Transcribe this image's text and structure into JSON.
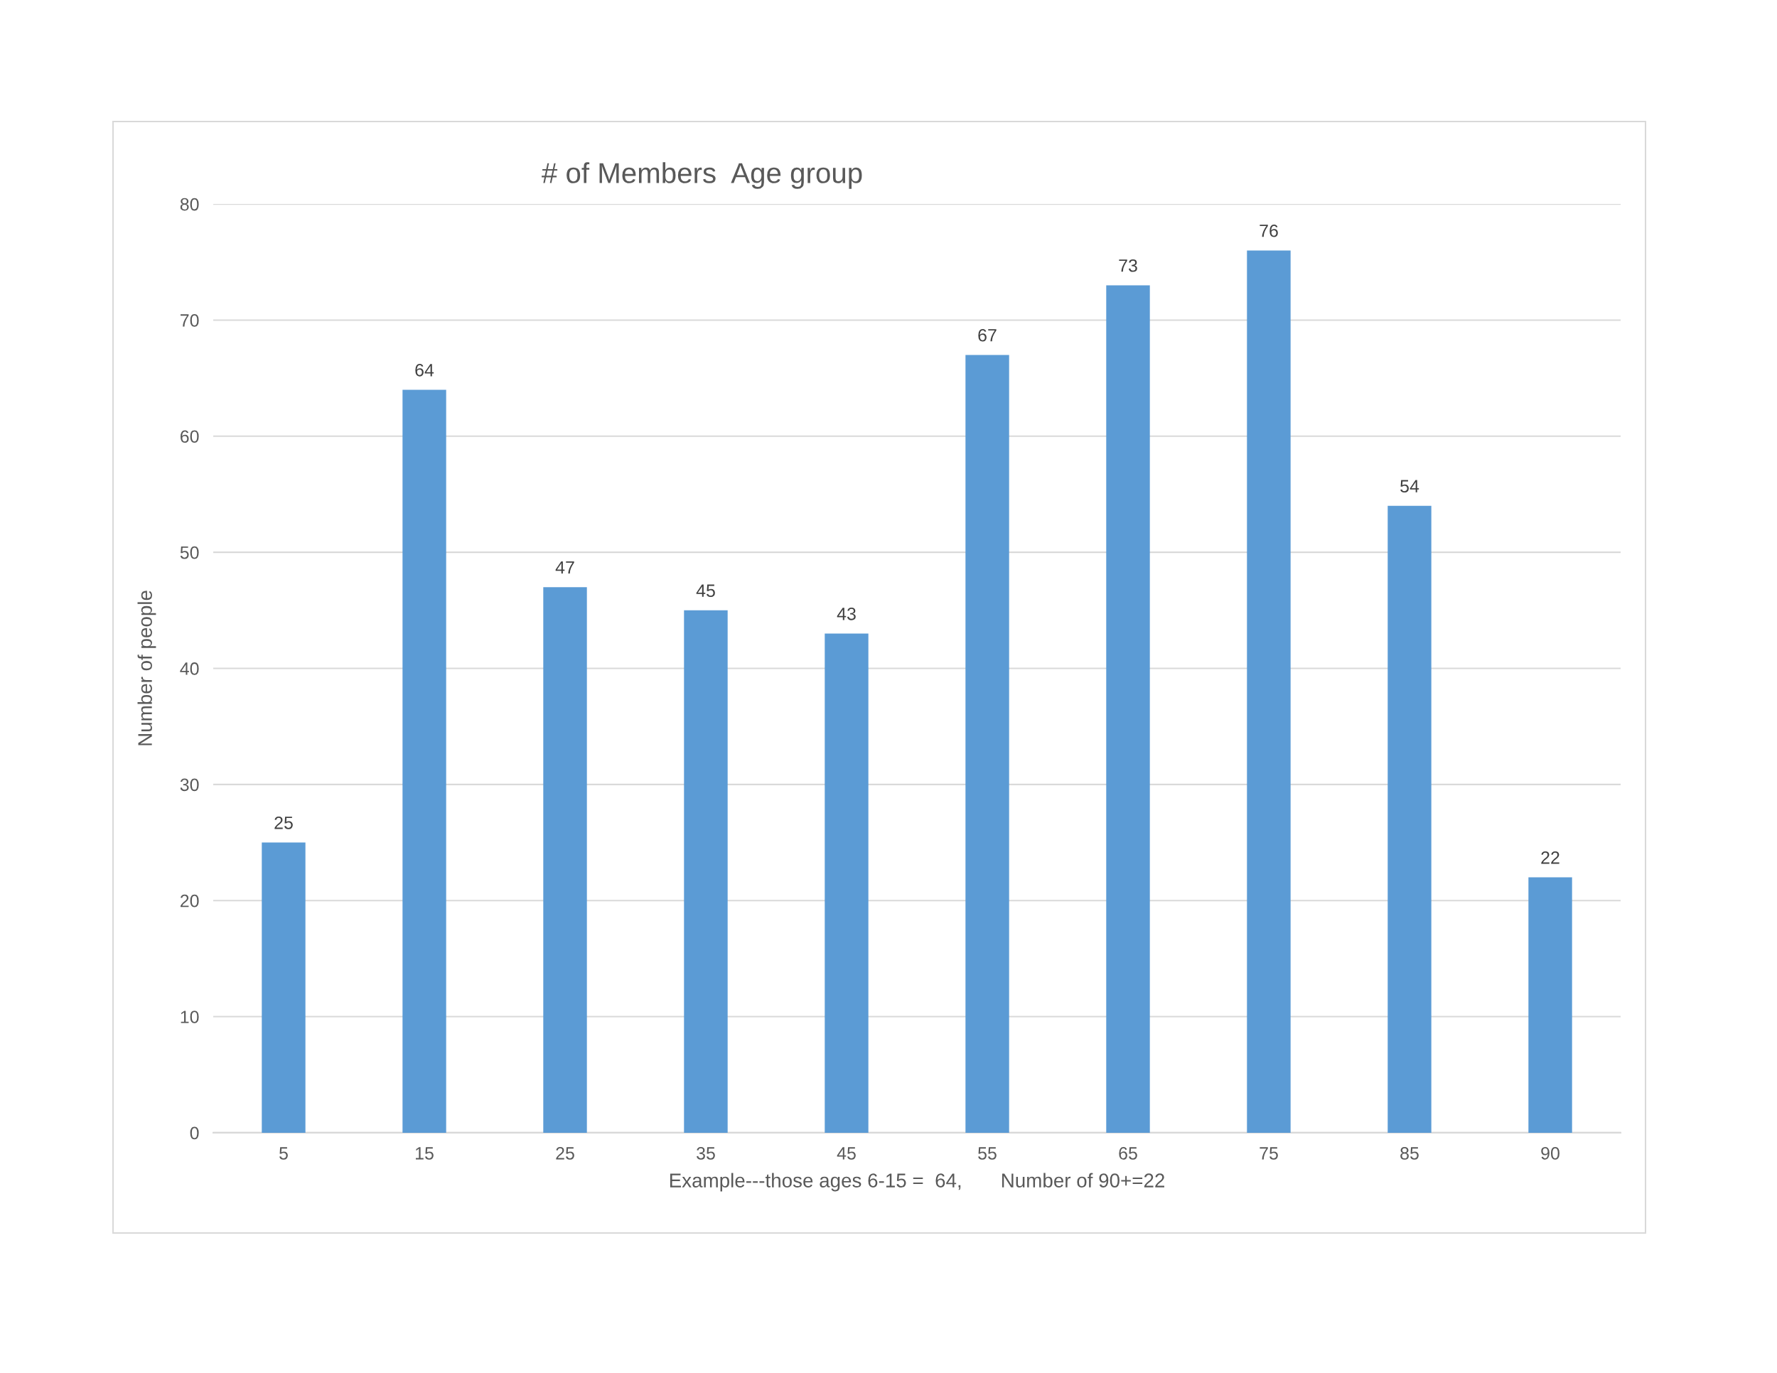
{
  "chart_data": {
    "type": "bar",
    "title": "# of Members  Age group",
    "ylabel": "Number of people",
    "xlabel": "Example---those ages 6-15 =  64,       Number of 90+=22",
    "categories": [
      "5",
      "15",
      "25",
      "35",
      "45",
      "55",
      "65",
      "75",
      "85",
      "90"
    ],
    "values": [
      25,
      64,
      47,
      45,
      43,
      67,
      73,
      76,
      54,
      22
    ],
    "color": "#5b9bd5",
    "ylim": [
      0,
      80
    ],
    "yticks": [
      0,
      10,
      20,
      30,
      40,
      50,
      60,
      70,
      80
    ],
    "grid": "y",
    "data_labels": true,
    "legend": false
  }
}
